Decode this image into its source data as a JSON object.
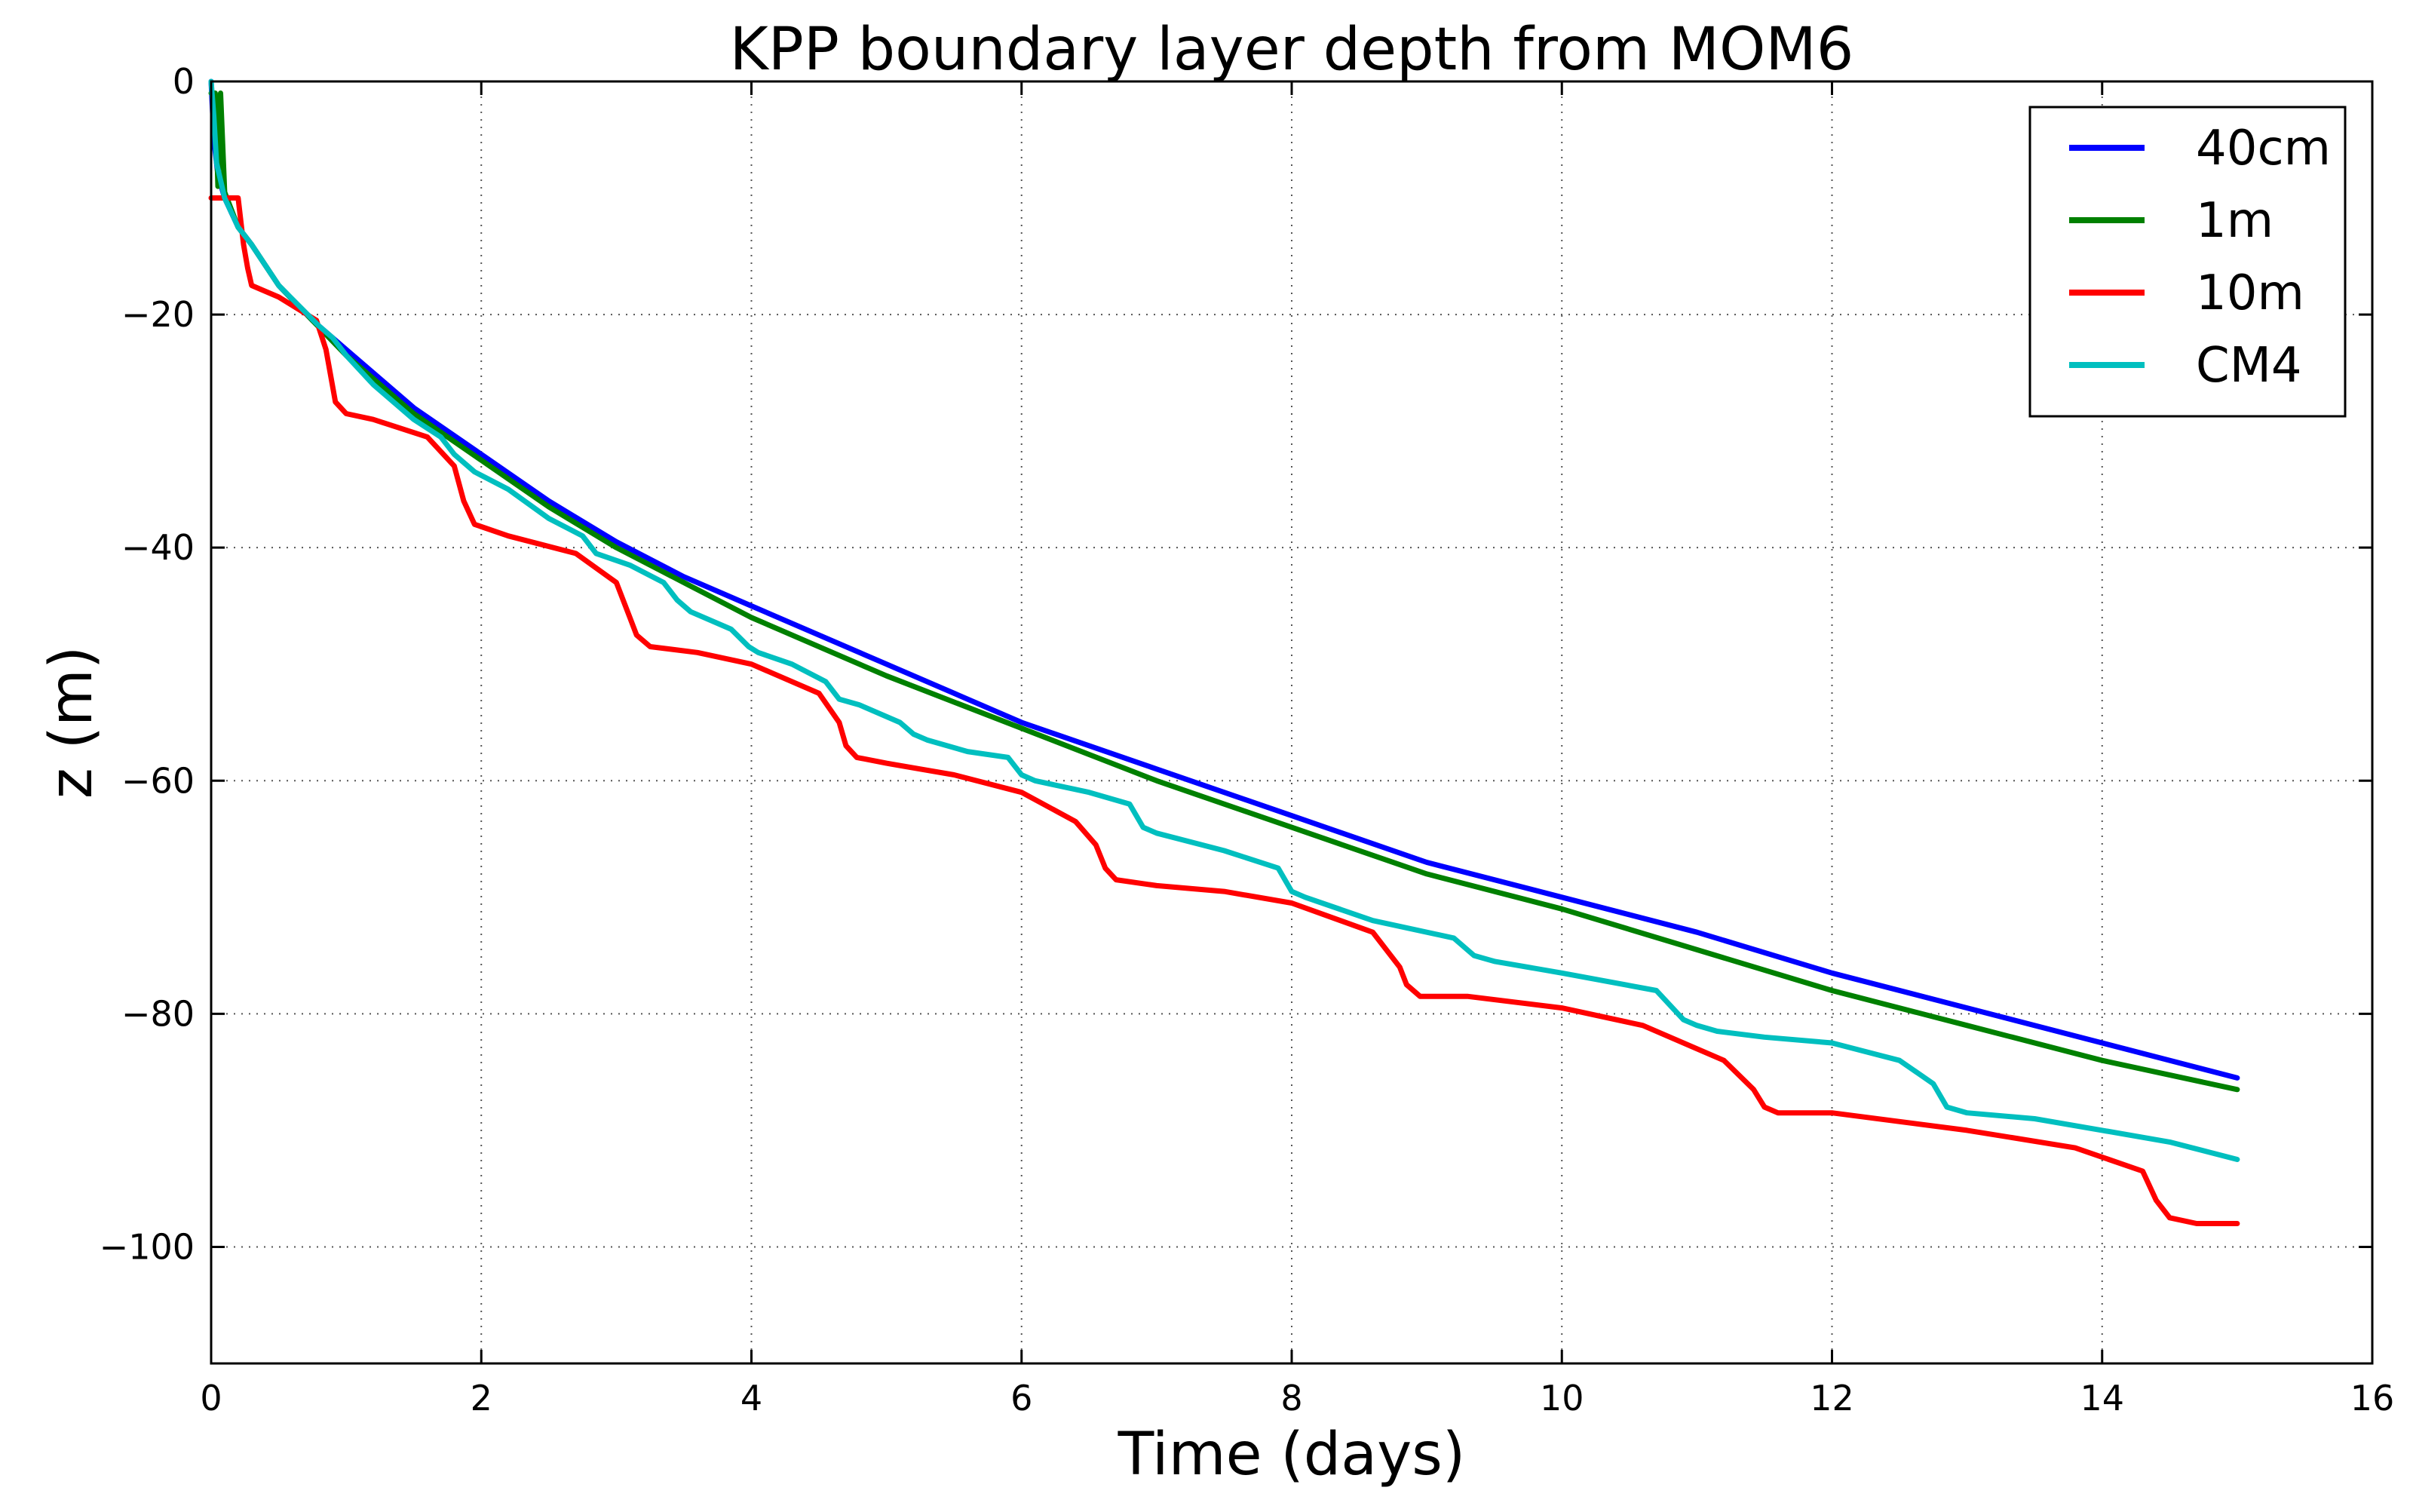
{
  "chart_data": {
    "type": "line",
    "title": "KPP boundary layer depth from MOM6",
    "xlabel": "Time (days)",
    "ylabel": "z (m)",
    "xlim": [
      0,
      16
    ],
    "ylim": [
      -110,
      0
    ],
    "xticks": [
      0,
      2,
      4,
      6,
      8,
      10,
      12,
      14,
      16
    ],
    "yticks": [
      0,
      -20,
      -40,
      -60,
      -80,
      -100
    ],
    "xtick_labels": [
      "0",
      "2",
      "4",
      "6",
      "8",
      "10",
      "12",
      "14",
      "16"
    ],
    "ytick_labels": [
      "0",
      "−20",
      "−40",
      "−60",
      "−80",
      "−100"
    ],
    "grid": true,
    "legend_position": "top-right",
    "series": [
      {
        "name": "40cm",
        "color": "#0000ff",
        "x": [
          0,
          0.02,
          0.05,
          0.1,
          0.2,
          0.3,
          0.5,
          0.75,
          1.0,
          1.5,
          2.0,
          2.5,
          3.0,
          3.5,
          4.0,
          5.0,
          6.0,
          7.0,
          8.0,
          9.0,
          10.0,
          11.0,
          12.0,
          13.0,
          14.0,
          15.0
        ],
        "y": [
          0,
          -5,
          -8,
          -10,
          -12.5,
          -14,
          -17.5,
          -20.5,
          -23,
          -28,
          -32,
          -36,
          -39.5,
          -42.5,
          -45,
          -50,
          -55,
          -59,
          -63,
          -67,
          -70,
          -73,
          -76.5,
          -79.5,
          -82.5,
          -85.5
        ]
      },
      {
        "name": "1m",
        "color": "#008000",
        "x": [
          0,
          0.03,
          0.05,
          0.07,
          0.1,
          0.2,
          0.3,
          0.5,
          0.75,
          1.0,
          1.5,
          2.0,
          2.5,
          3.0,
          3.5,
          4.0,
          5.0,
          6.0,
          7.0,
          8.0,
          9.0,
          10.0,
          11.0,
          12.0,
          13.0,
          14.0,
          15.0
        ],
        "y": [
          -1,
          -1,
          -9,
          -1,
          -9.5,
          -12.5,
          -14,
          -17.5,
          -20.5,
          -23.5,
          -28.5,
          -32.5,
          -36.5,
          -40,
          -43,
          -46,
          -51,
          -55.5,
          -60,
          -64,
          -68,
          -71,
          -74.5,
          -78,
          -81,
          -84,
          -86.5
        ]
      },
      {
        "name": "10m",
        "color": "#ff0000",
        "x": [
          0,
          0.2,
          0.24,
          0.27,
          0.3,
          0.5,
          0.78,
          0.85,
          0.92,
          1.0,
          1.2,
          1.6,
          1.8,
          1.87,
          1.95,
          2.2,
          2.7,
          3.0,
          3.1,
          3.15,
          3.25,
          3.6,
          4.0,
          4.5,
          4.65,
          4.7,
          4.78,
          5.0,
          5.5,
          6.0,
          6.4,
          6.55,
          6.62,
          6.7,
          7.0,
          7.5,
          8.0,
          8.6,
          8.8,
          8.85,
          8.95,
          9.3,
          10.0,
          10.6,
          11.2,
          11.42,
          11.5,
          11.6,
          12.0,
          13.0,
          13.8,
          14.3,
          14.4,
          14.5,
          14.7,
          15.0
        ],
        "y": [
          -10,
          -10,
          -14,
          -16,
          -17.5,
          -18.5,
          -20.5,
          -23,
          -27.5,
          -28.5,
          -29,
          -30.5,
          -33,
          -36,
          -38,
          -39,
          -40.5,
          -43,
          -46,
          -47.5,
          -48.5,
          -49,
          -50,
          -52.5,
          -55,
          -57,
          -58,
          -58.5,
          -59.5,
          -61,
          -63.5,
          -65.5,
          -67.5,
          -68.5,
          -69,
          -69.5,
          -70.5,
          -73,
          -76,
          -77.5,
          -78.5,
          -78.5,
          -79.5,
          -81,
          -84,
          -86.5,
          -88,
          -88.5,
          -88.5,
          -90,
          -91.5,
          -93.5,
          -96,
          -97.5,
          -98,
          -98
        ]
      },
      {
        "name": "CM4",
        "color": "#00bfbf",
        "x": [
          0,
          0.02,
          0.04,
          0.1,
          0.2,
          0.3,
          0.5,
          0.8,
          0.9,
          1.0,
          1.2,
          1.5,
          1.7,
          1.8,
          1.95,
          2.2,
          2.5,
          2.75,
          2.85,
          3.1,
          3.35,
          3.45,
          3.55,
          3.85,
          3.98,
          4.05,
          4.3,
          4.55,
          4.65,
          4.8,
          5.1,
          5.2,
          5.3,
          5.6,
          5.9,
          6.0,
          6.1,
          6.5,
          6.8,
          6.9,
          7.0,
          7.5,
          7.9,
          8.0,
          8.1,
          8.6,
          9.2,
          9.35,
          9.5,
          10.0,
          10.7,
          10.9,
          11.0,
          11.15,
          11.5,
          12.0,
          12.5,
          12.75,
          12.85,
          13.0,
          13.5,
          14.0,
          14.5,
          15.0
        ],
        "y": [
          0,
          -3,
          -7,
          -10,
          -12.5,
          -14,
          -17.5,
          -21,
          -22,
          -23.5,
          -26,
          -29,
          -30.5,
          -32,
          -33.5,
          -35,
          -37.5,
          -39,
          -40.5,
          -41.5,
          -43,
          -44.5,
          -45.5,
          -47,
          -48.5,
          -49,
          -50,
          -51.5,
          -53,
          -53.5,
          -55,
          -56,
          -56.5,
          -57.5,
          -58,
          -59.5,
          -60,
          -61,
          -62,
          -64,
          -64.5,
          -66,
          -67.5,
          -69.5,
          -70,
          -72,
          -73.5,
          -75,
          -75.5,
          -76.5,
          -78,
          -80.5,
          -81,
          -81.5,
          -82,
          -82.5,
          -84,
          -86,
          -88,
          -88.5,
          -89,
          -90,
          -91,
          -92.5
        ]
      }
    ]
  }
}
